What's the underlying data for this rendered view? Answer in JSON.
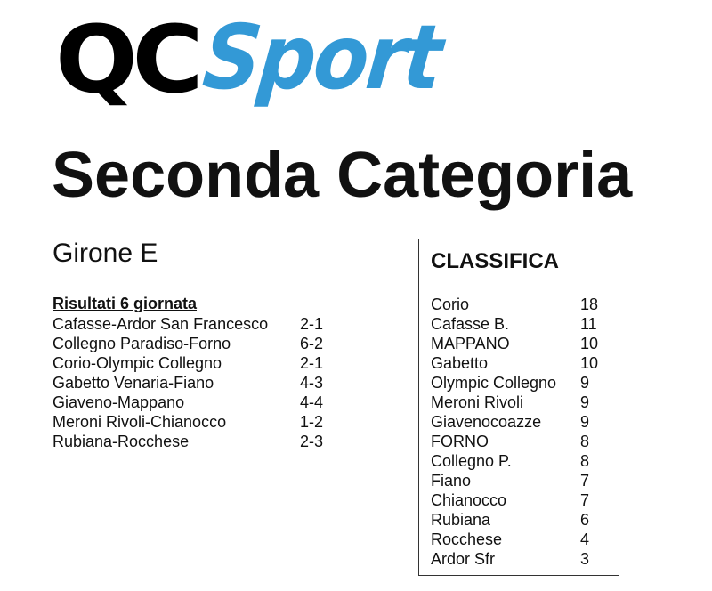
{
  "logo": {
    "part1": "QC",
    "part2": "Sport",
    "colors": {
      "part1": "#000000",
      "part2": "#3399d6"
    }
  },
  "title": "Seconda Categoria",
  "group": "Girone E",
  "results": {
    "heading": "Risultati 6 giornata",
    "matches": [
      {
        "match": "Cafasse-Ardor San Francesco",
        "score": "2-1"
      },
      {
        "match": "Collegno Paradiso-Forno",
        "score": "6-2"
      },
      {
        "match": "Corio-Olympic Collegno",
        "score": "2-1"
      },
      {
        "match": "Gabetto Venaria-Fiano",
        "score": "4-3"
      },
      {
        "match": "Giaveno-Mappano",
        "score": "4-4"
      },
      {
        "match": "Meroni Rivoli-Chianocco",
        "score": "1-2"
      },
      {
        "match": "Rubiana-Rocchese",
        "score": "2-3"
      }
    ]
  },
  "standings": {
    "heading": "CLASSIFICA",
    "rows": [
      {
        "team": "Corio",
        "pts": "18"
      },
      {
        "team": "Cafasse B.",
        "pts": "11"
      },
      {
        "team": "MAPPANO",
        "pts": "10"
      },
      {
        "team": "Gabetto",
        "pts": "10"
      },
      {
        "team": "Olympic Collegno",
        "pts": "9"
      },
      {
        "team": "Meroni Rivoli",
        "pts": "9"
      },
      {
        "team": "Giavenocoazze",
        "pts": "9"
      },
      {
        "team": "FORNO",
        "pts": "8"
      },
      {
        "team": "Collegno P.",
        "pts": "8"
      },
      {
        "team": "Fiano",
        "pts": "7"
      },
      {
        "team": "Chianocco",
        "pts": "7"
      },
      {
        "team": "Rubiana",
        "pts": "6"
      },
      {
        "team": "Rocchese",
        "pts": "4"
      },
      {
        "team": "Ardor Sfr",
        "pts": "3"
      }
    ]
  }
}
